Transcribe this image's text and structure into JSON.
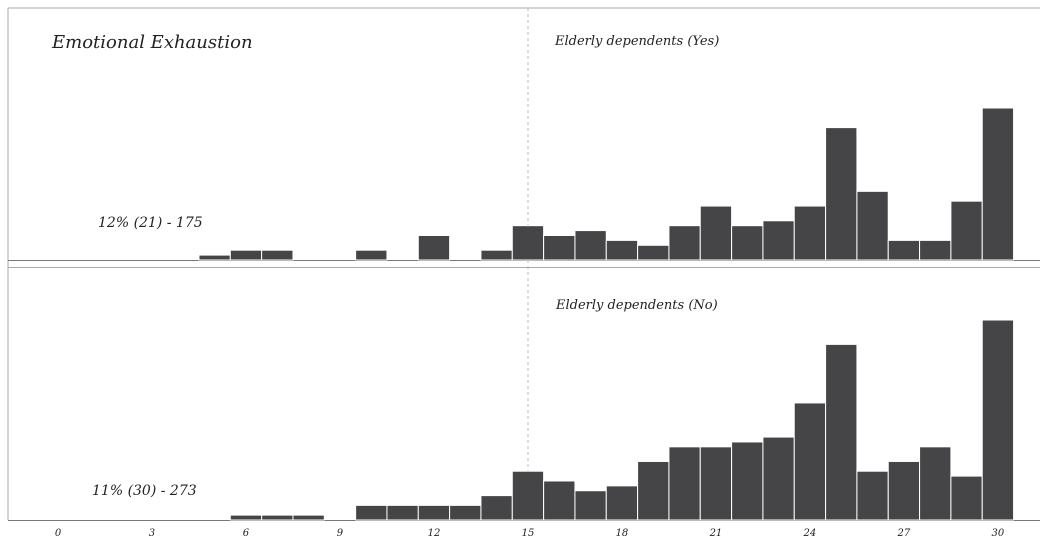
{
  "chart_data": {
    "type": "bar",
    "title": "Emotional Exhaustion",
    "x_ticks": [
      0,
      3,
      6,
      9,
      12,
      15,
      18,
      21,
      24,
      27,
      30
    ],
    "x_range": [
      0,
      30
    ],
    "reference_line_x": 15,
    "panels": [
      {
        "label": "Elderly dependents (Yes)",
        "stat": "12% (21) - 175",
        "ylim": [
          0,
          32
        ],
        "x": [
          5,
          6,
          7,
          10,
          12,
          14,
          15,
          16,
          17,
          18,
          19,
          20,
          21,
          22,
          23,
          24,
          25,
          26,
          27,
          28,
          29,
          30
        ],
        "values": [
          1,
          2,
          2,
          2,
          5,
          2,
          7,
          5,
          6,
          4,
          3,
          7,
          11,
          7,
          8,
          11,
          27,
          14,
          4,
          4,
          12,
          31
        ]
      },
      {
        "label": "Elderly dependents (No)",
        "stat": "11% (30) - 273",
        "ylim": [
          0,
          42
        ],
        "x": [
          6,
          7,
          8,
          10,
          11,
          12,
          13,
          14,
          15,
          16,
          17,
          18,
          19,
          20,
          21,
          22,
          23,
          24,
          25,
          26,
          27,
          28,
          29,
          30
        ],
        "values": [
          1,
          1,
          1,
          3,
          3,
          3,
          3,
          5,
          10,
          8,
          6,
          7,
          12,
          15,
          15,
          16,
          17,
          24,
          36,
          10,
          12,
          15,
          9,
          41
        ]
      }
    ]
  }
}
